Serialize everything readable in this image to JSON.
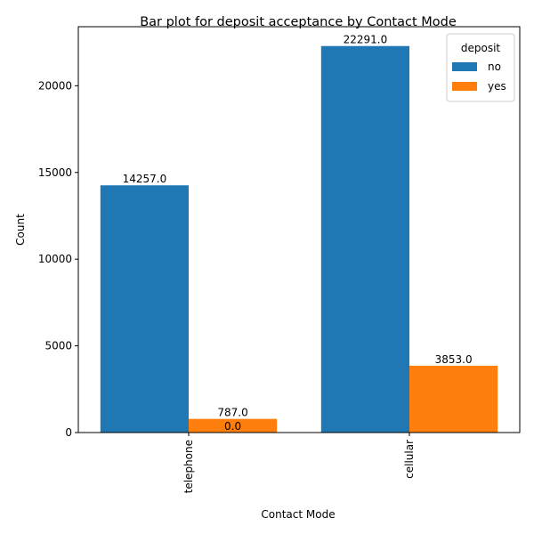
{
  "chart_data": {
    "type": "bar",
    "title": "Bar plot for deposit acceptance by Contact Mode",
    "xlabel": "Contact Mode",
    "ylabel": "Count",
    "categories": [
      "telephone",
      "cellular"
    ],
    "series": [
      {
        "name": "no",
        "values": [
          14257,
          22291
        ],
        "labels": [
          "14257.0",
          "22291.0"
        ],
        "color": "#1f77b4"
      },
      {
        "name": "yes",
        "values": [
          787,
          3853
        ],
        "labels": [
          "787.0",
          "3853.0"
        ],
        "color": "#ff7f0e"
      }
    ],
    "extra_labels": [
      {
        "text": "0.0",
        "category": "telephone",
        "series": "yes",
        "value": 0
      }
    ],
    "ylim": [
      0,
      23406
    ],
    "yticks": [
      0,
      5000,
      10000,
      15000,
      20000
    ],
    "ytick_labels": [
      "0",
      "5000",
      "10000",
      "15000",
      "20000"
    ],
    "grid": false,
    "legend": {
      "title": "deposit",
      "placement": "top-right"
    },
    "xtick_rotation": "vertical"
  }
}
